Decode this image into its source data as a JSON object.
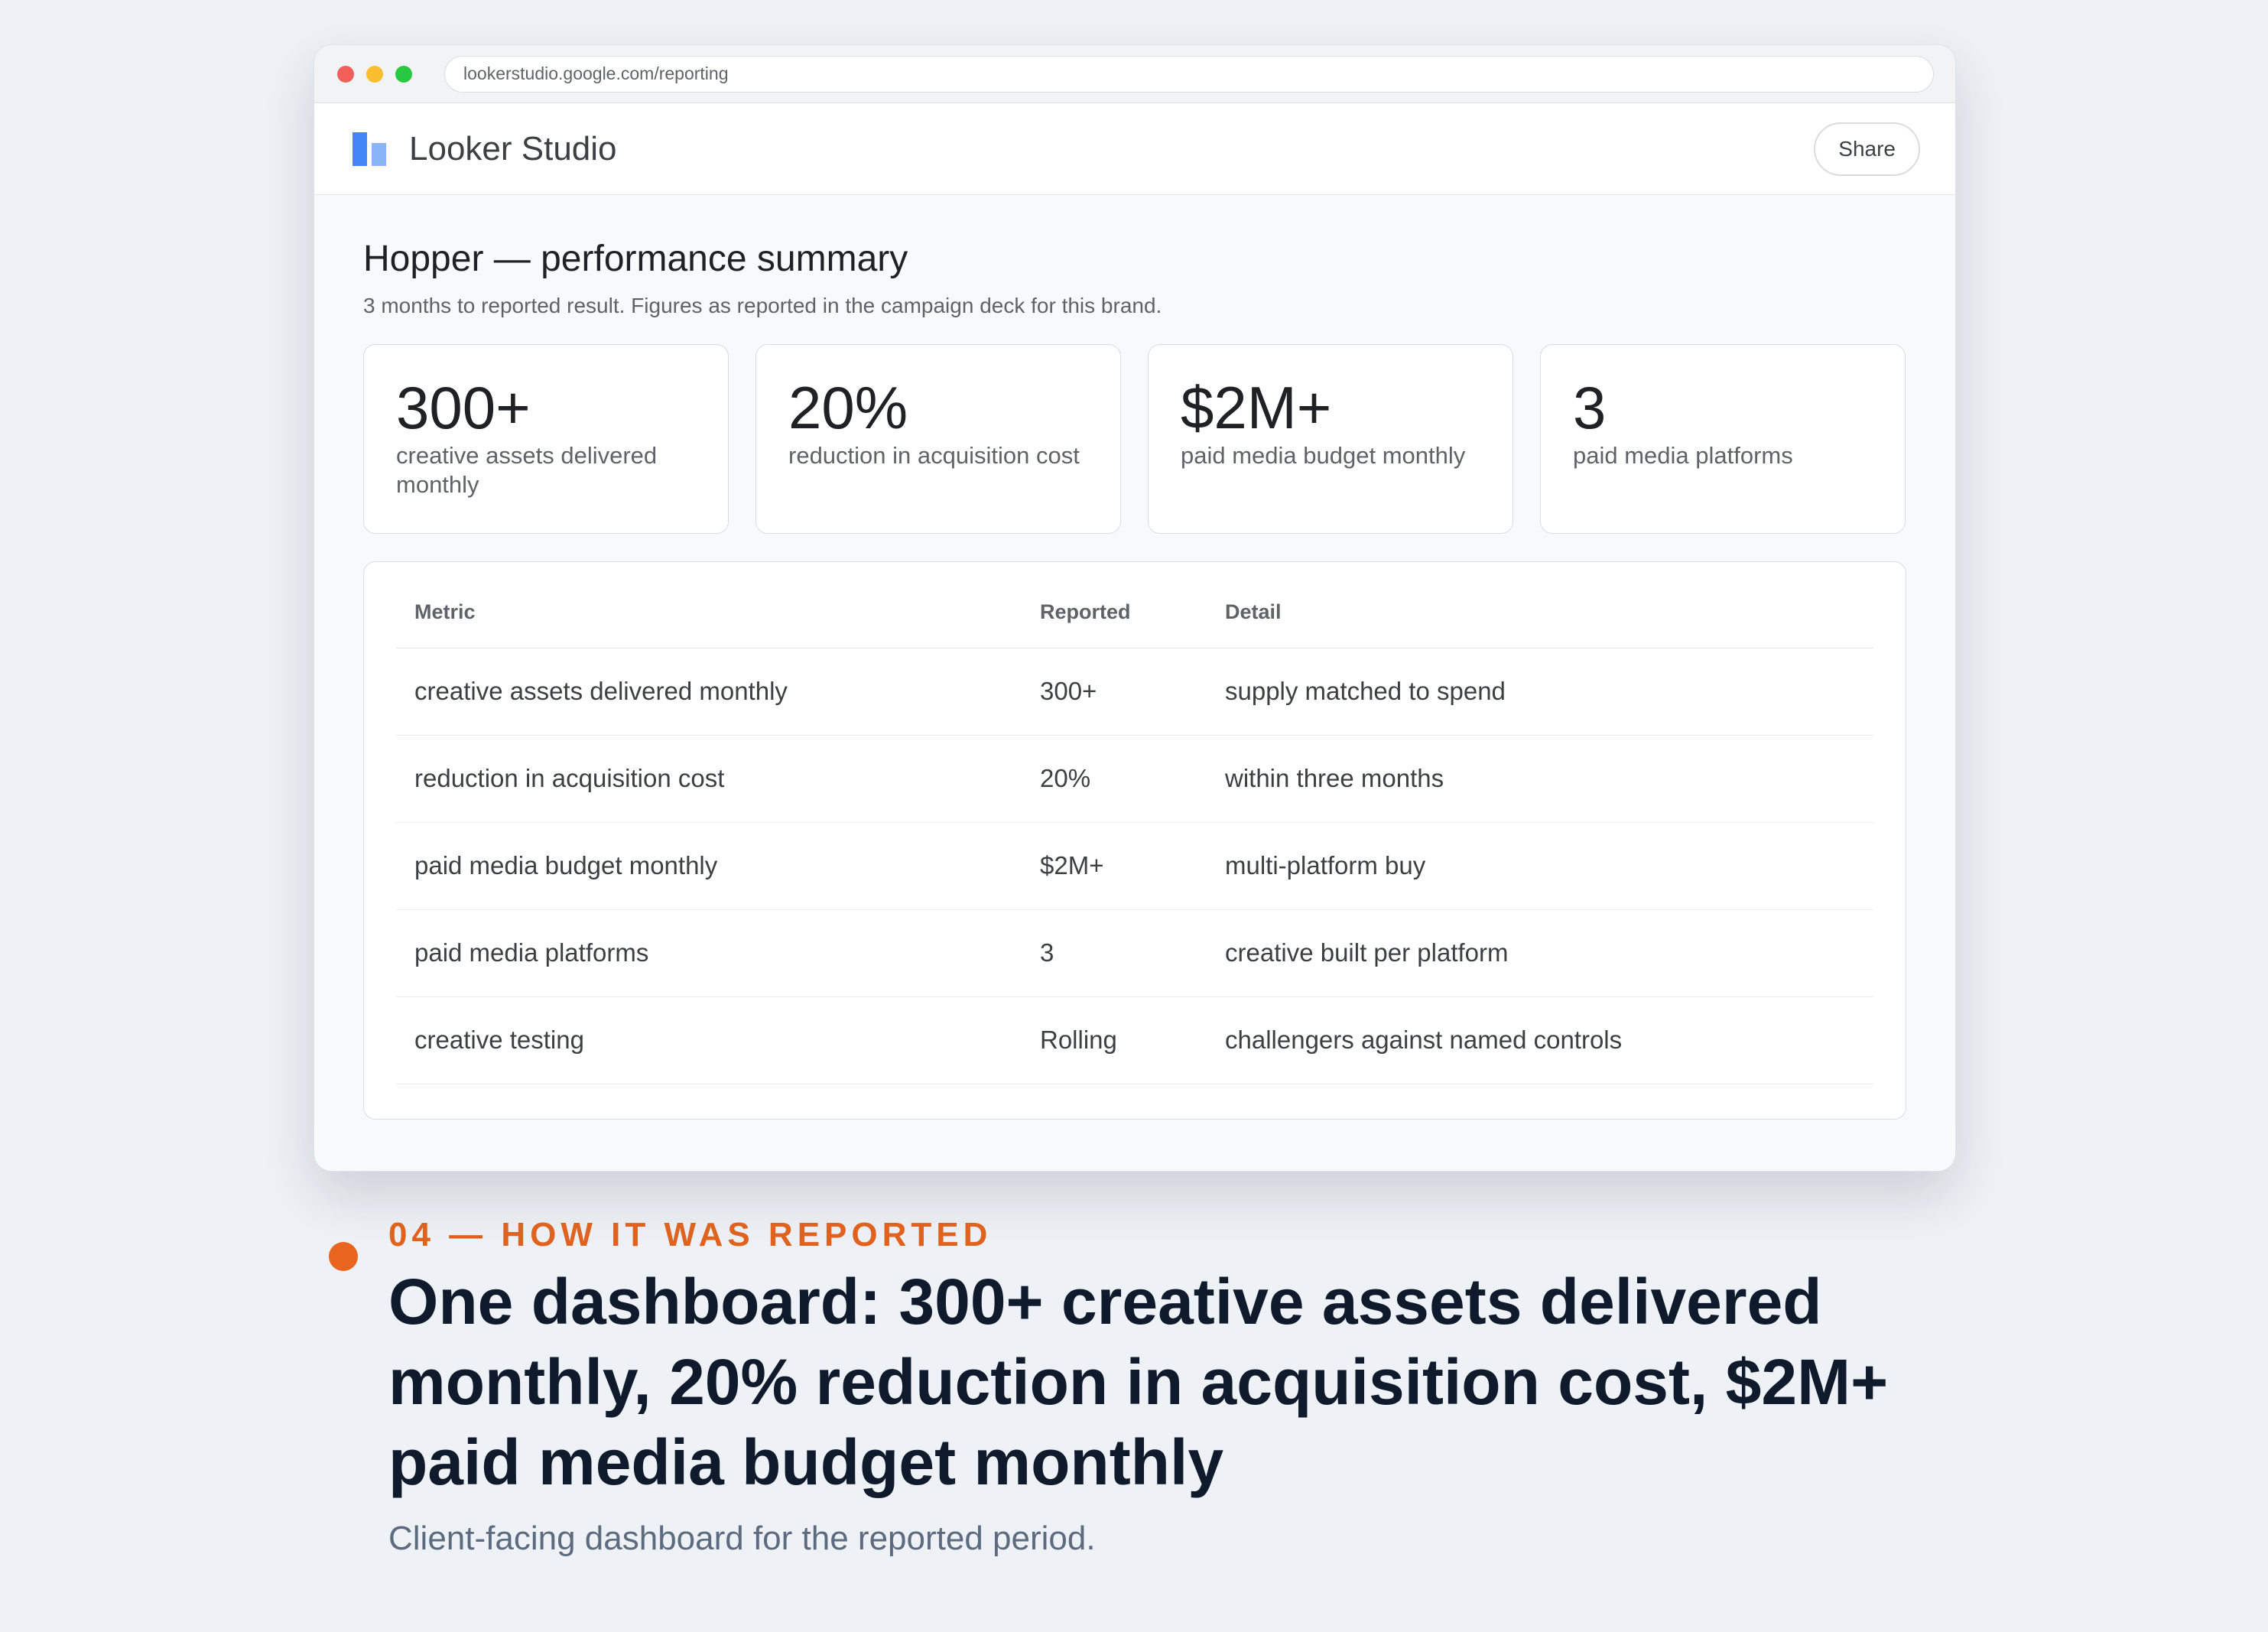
{
  "browser": {
    "url": "lookerstudio.google.com/reporting"
  },
  "app": {
    "name": "Looker Studio",
    "share_label": "Share",
    "logo_icon": "looker-studio-logo-icon"
  },
  "report": {
    "title": "Hopper — performance summary",
    "subtitle": "3 months to reported result. Figures as reported in the campaign deck for this brand."
  },
  "kpis": [
    {
      "value": "300+",
      "label": "creative assets delivered monthly"
    },
    {
      "value": "20%",
      "label": "reduction in acquisition cost"
    },
    {
      "value": "$2M+",
      "label": "paid media budget monthly"
    },
    {
      "value": "3",
      "label": "paid media platforms"
    }
  ],
  "table": {
    "headers": [
      "Metric",
      "Reported",
      "Detail"
    ],
    "rows": [
      [
        "creative assets delivered monthly",
        "300+",
        "supply matched to spend"
      ],
      [
        "reduction in acquisition cost",
        "20%",
        "within three months"
      ],
      [
        "paid media budget monthly",
        "$2M+",
        "multi-platform buy"
      ],
      [
        "paid media platforms",
        "3",
        "creative built per platform"
      ],
      [
        "creative testing",
        "Rolling",
        "challengers against named controls"
      ]
    ]
  },
  "caption": {
    "eyebrow": "04 — HOW IT WAS REPORTED",
    "headline": "One dashboard: 300+ creative assets delivered monthly, 20% reduction in acquisition cost, $2M+ paid media budget monthly",
    "description": "Client-facing dashboard for the reported period."
  },
  "colors": {
    "accent": "#e8641f",
    "headline": "#0f1b2d",
    "logo_primary": "#4285f4",
    "logo_secondary": "#8ab4f8",
    "traffic_close": "#f25f58",
    "traffic_minimize": "#f9bd2e",
    "traffic_maximize": "#28c840"
  }
}
